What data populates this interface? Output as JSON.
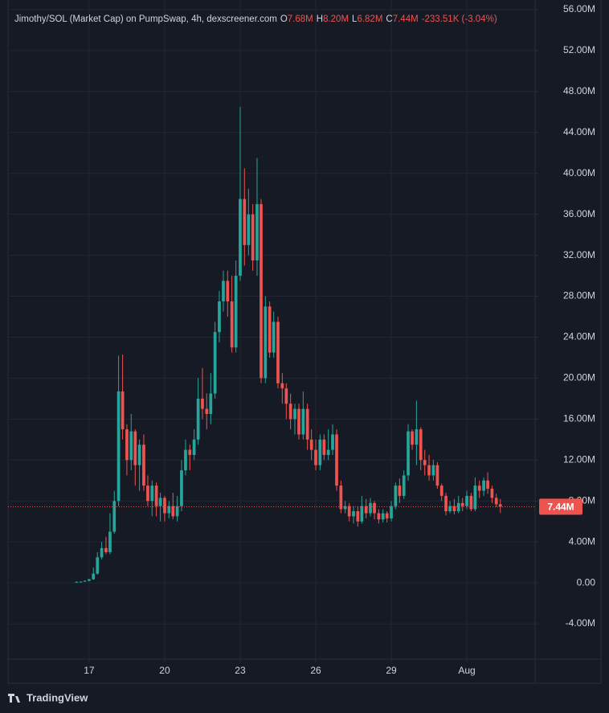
{
  "chart_data": {
    "type": "candlestick",
    "title": "Jimothy/SOL (Market Cap) on PumpSwap, 4h, dexscreener.com",
    "ohlc_legend": [
      {
        "label": "O",
        "value": "7.68M"
      },
      {
        "label": "H",
        "value": "8.20M"
      },
      {
        "label": "L",
        "value": "6.82M"
      },
      {
        "label": "C",
        "value": "7.44M"
      }
    ],
    "change": "-233.51K (-3.04%)",
    "last_price": {
      "value": 7.44,
      "label": "7.44M"
    },
    "up_color": "#26a69a",
    "down_color": "#ef5350",
    "xlim": [
      13.78,
      34.71
    ],
    "xticks": [
      17,
      20,
      23,
      26,
      29,
      {
        "value": 32,
        "label": "Aug"
      }
    ],
    "ylim": [
      -7.45,
      56.94
    ],
    "yticks": [
      {
        "value": -4,
        "label": "-4.00M"
      },
      {
        "value": 0,
        "label": "0.00"
      },
      {
        "value": 4,
        "label": "4.00M"
      },
      {
        "value": 8,
        "label": "8.00M"
      },
      {
        "value": 12,
        "label": "12.00M"
      },
      {
        "value": 16,
        "label": "16.00M"
      },
      {
        "value": 20,
        "label": "20.00M"
      },
      {
        "value": 24,
        "label": "24.00M"
      },
      {
        "value": 28,
        "label": "28.00M"
      },
      {
        "value": 32,
        "label": "32.00M"
      },
      {
        "value": 36,
        "label": "36.00M"
      },
      {
        "value": 40,
        "label": "40.00M"
      },
      {
        "value": 44,
        "label": "44.00M"
      },
      {
        "value": 48,
        "label": "48.00M"
      },
      {
        "value": 52,
        "label": "52.00M"
      },
      {
        "value": 56,
        "label": "56.00M"
      }
    ],
    "grid": true,
    "brand": "TradingView",
    "x": [
      16.5,
      16.67,
      16.83,
      17,
      17.17,
      17.33,
      17.5,
      17.67,
      17.83,
      18,
      18.17,
      18.33,
      18.5,
      18.67,
      18.83,
      19,
      19.17,
      19.33,
      19.5,
      19.67,
      19.83,
      20,
      20.17,
      20.33,
      20.5,
      20.67,
      20.83,
      21,
      21.17,
      21.33,
      21.5,
      21.67,
      21.83,
      22,
      22.17,
      22.33,
      22.5,
      22.67,
      22.83,
      23,
      23.17,
      23.33,
      23.5,
      23.67,
      23.83,
      24,
      24.17,
      24.33,
      24.5,
      24.67,
      24.83,
      25,
      25.17,
      25.33,
      25.5,
      25.67,
      25.83,
      26,
      26.17,
      26.33,
      26.5,
      26.67,
      26.83,
      27,
      27.17,
      27.33,
      27.5,
      27.67,
      27.83,
      28,
      28.17,
      28.33,
      28.5,
      28.67,
      28.83,
      29,
      29.17,
      29.33,
      29.5,
      29.67,
      29.83,
      30,
      30.17,
      30.33,
      30.5,
      30.67,
      30.83,
      31,
      31.17,
      31.33,
      31.5,
      31.67,
      31.83,
      32,
      32.17,
      32.33,
      32.5,
      32.67,
      32.83,
      33,
      33.17,
      33.33
    ],
    "candles": [
      [
        0.05,
        0.15,
        0.05,
        0.1
      ],
      [
        0.1,
        0.15,
        0.08,
        0.12
      ],
      [
        0.12,
        0.25,
        0.1,
        0.2
      ],
      [
        0.2,
        0.4,
        0.15,
        0.35
      ],
      [
        0.35,
        1.5,
        0.3,
        0.9
      ],
      [
        0.9,
        3,
        0.8,
        2.5
      ],
      [
        2.5,
        4,
        2.3,
        3.4
      ],
      [
        3.4,
        4.5,
        2.8,
        3
      ],
      [
        3,
        6.8,
        2.8,
        5
      ],
      [
        5,
        9,
        4.8,
        8
      ],
      [
        8,
        22.2,
        7.5,
        18.7
      ],
      [
        18.7,
        22.3,
        14,
        15
      ],
      [
        15,
        15.5,
        10.5,
        12
      ],
      [
        12,
        16.5,
        11,
        14.8
      ],
      [
        14.8,
        15,
        9.5,
        11.5
      ],
      [
        11.5,
        14,
        9,
        13.5
      ],
      [
        13.5,
        14.5,
        9,
        9.5
      ],
      [
        9.5,
        10.5,
        7.5,
        8
      ],
      [
        8,
        10,
        6.5,
        9.5
      ],
      [
        9.5,
        9.8,
        6.5,
        7.5
      ],
      [
        7.5,
        8.8,
        6,
        8.3
      ],
      [
        8.3,
        8.5,
        6,
        6.8
      ],
      [
        6.8,
        8,
        6.3,
        7.5
      ],
      [
        7.5,
        8.8,
        6.2,
        6.5
      ],
      [
        6.5,
        8.5,
        6,
        7.5
      ],
      [
        7.5,
        12,
        7,
        11
      ],
      [
        11,
        14,
        10.5,
        13
      ],
      [
        13,
        13.5,
        11,
        12.5
      ],
      [
        12.5,
        15,
        12,
        14
      ],
      [
        14,
        20,
        13.5,
        18
      ],
      [
        18,
        21,
        16,
        17
      ],
      [
        17,
        18.5,
        15,
        16.5
      ],
      [
        16.5,
        20.5,
        15.5,
        18.5
      ],
      [
        18.5,
        25.5,
        18,
        24.5
      ],
      [
        24.5,
        28.5,
        23.5,
        27.5
      ],
      [
        27.5,
        30.5,
        26.5,
        29.5
      ],
      [
        29.5,
        30.5,
        26,
        27.5
      ],
      [
        27.5,
        30,
        22.5,
        23
      ],
      [
        23,
        31.5,
        22.5,
        30
      ],
      [
        30,
        46.5,
        29.5,
        37.5
      ],
      [
        37.5,
        40.5,
        31,
        33
      ],
      [
        33,
        38.5,
        32,
        36
      ],
      [
        36,
        37,
        30.5,
        31.5
      ],
      [
        31.5,
        41.5,
        30,
        37
      ],
      [
        37,
        37.5,
        19.5,
        20
      ],
      [
        20,
        28,
        19.5,
        27
      ],
      [
        27,
        27.5,
        22,
        22.5
      ],
      [
        22.5,
        26.5,
        22,
        25.5
      ],
      [
        25.5,
        26,
        19,
        19.5
      ],
      [
        19.5,
        20.5,
        17.5,
        19
      ],
      [
        19,
        19.5,
        16,
        17.5
      ],
      [
        17.5,
        18.5,
        15,
        16
      ],
      [
        16,
        17.5,
        14.5,
        17
      ],
      [
        17,
        17.5,
        14,
        14.5
      ],
      [
        14.5,
        18.7,
        14,
        17
      ],
      [
        17,
        17.5,
        13,
        14
      ],
      [
        14,
        15,
        12,
        13
      ],
      [
        13,
        14,
        11,
        11.5
      ],
      [
        11.5,
        14.5,
        11,
        14
      ],
      [
        14,
        14.5,
        12,
        12.5
      ],
      [
        12.5,
        15,
        12,
        13
      ],
      [
        13,
        15.5,
        12.5,
        14.5
      ],
      [
        14.5,
        15,
        9,
        9.5
      ],
      [
        9.5,
        10,
        6.8,
        7.2
      ],
      [
        7.2,
        8,
        6.8,
        7.5
      ],
      [
        7.5,
        7.8,
        6,
        6.5
      ],
      [
        6.5,
        7.5,
        5.8,
        7
      ],
      [
        7,
        7.5,
        5.5,
        6
      ],
      [
        6,
        8.5,
        5.8,
        7.5
      ],
      [
        7.5,
        8.2,
        6.3,
        6.8
      ],
      [
        6.8,
        8.3,
        6.5,
        7.8
      ],
      [
        7.8,
        8,
        6.2,
        6.8
      ],
      [
        6.8,
        7.2,
        5.8,
        6.2
      ],
      [
        6.2,
        7.2,
        5.9,
        6.8
      ],
      [
        6.8,
        7,
        5.9,
        6.3
      ],
      [
        6.3,
        8,
        6,
        7.5
      ],
      [
        7.5,
        9.8,
        7.2,
        9.5
      ],
      [
        9.5,
        10.2,
        7.8,
        8.5
      ],
      [
        8.5,
        11,
        8.2,
        10.5
      ],
      [
        10.5,
        15.5,
        10,
        14.8
      ],
      [
        14.8,
        15,
        13,
        13.5
      ],
      [
        13.5,
        17.8,
        11.5,
        15
      ],
      [
        15,
        15.2,
        11,
        12
      ],
      [
        12,
        13,
        10.5,
        11.5
      ],
      [
        11.5,
        12.5,
        10,
        10.5
      ],
      [
        10.5,
        12,
        10,
        11.5
      ],
      [
        11.5,
        11.8,
        9.2,
        9.5
      ],
      [
        9.5,
        9.7,
        8,
        8.5
      ],
      [
        8.5,
        8.8,
        6.6,
        7
      ],
      [
        7,
        8,
        6.8,
        7.5
      ],
      [
        7.5,
        8.2,
        6.7,
        7
      ],
      [
        7,
        8.5,
        6.8,
        7.8
      ],
      [
        7.8,
        8.3,
        7,
        7.5
      ],
      [
        7.5,
        9,
        7.2,
        8.5
      ],
      [
        8.5,
        8.8,
        7,
        7.2
      ],
      [
        7.2,
        10.3,
        7,
        9.5
      ],
      [
        9.5,
        10,
        8.3,
        9
      ],
      [
        9,
        10.3,
        8.5,
        10
      ],
      [
        10,
        10.8,
        8.7,
        9.2
      ],
      [
        9.2,
        9.5,
        7.8,
        8.3
      ],
      [
        8.3,
        8.7,
        7.4,
        7.68
      ],
      [
        7.68,
        8.2,
        6.82,
        7.44
      ]
    ]
  }
}
